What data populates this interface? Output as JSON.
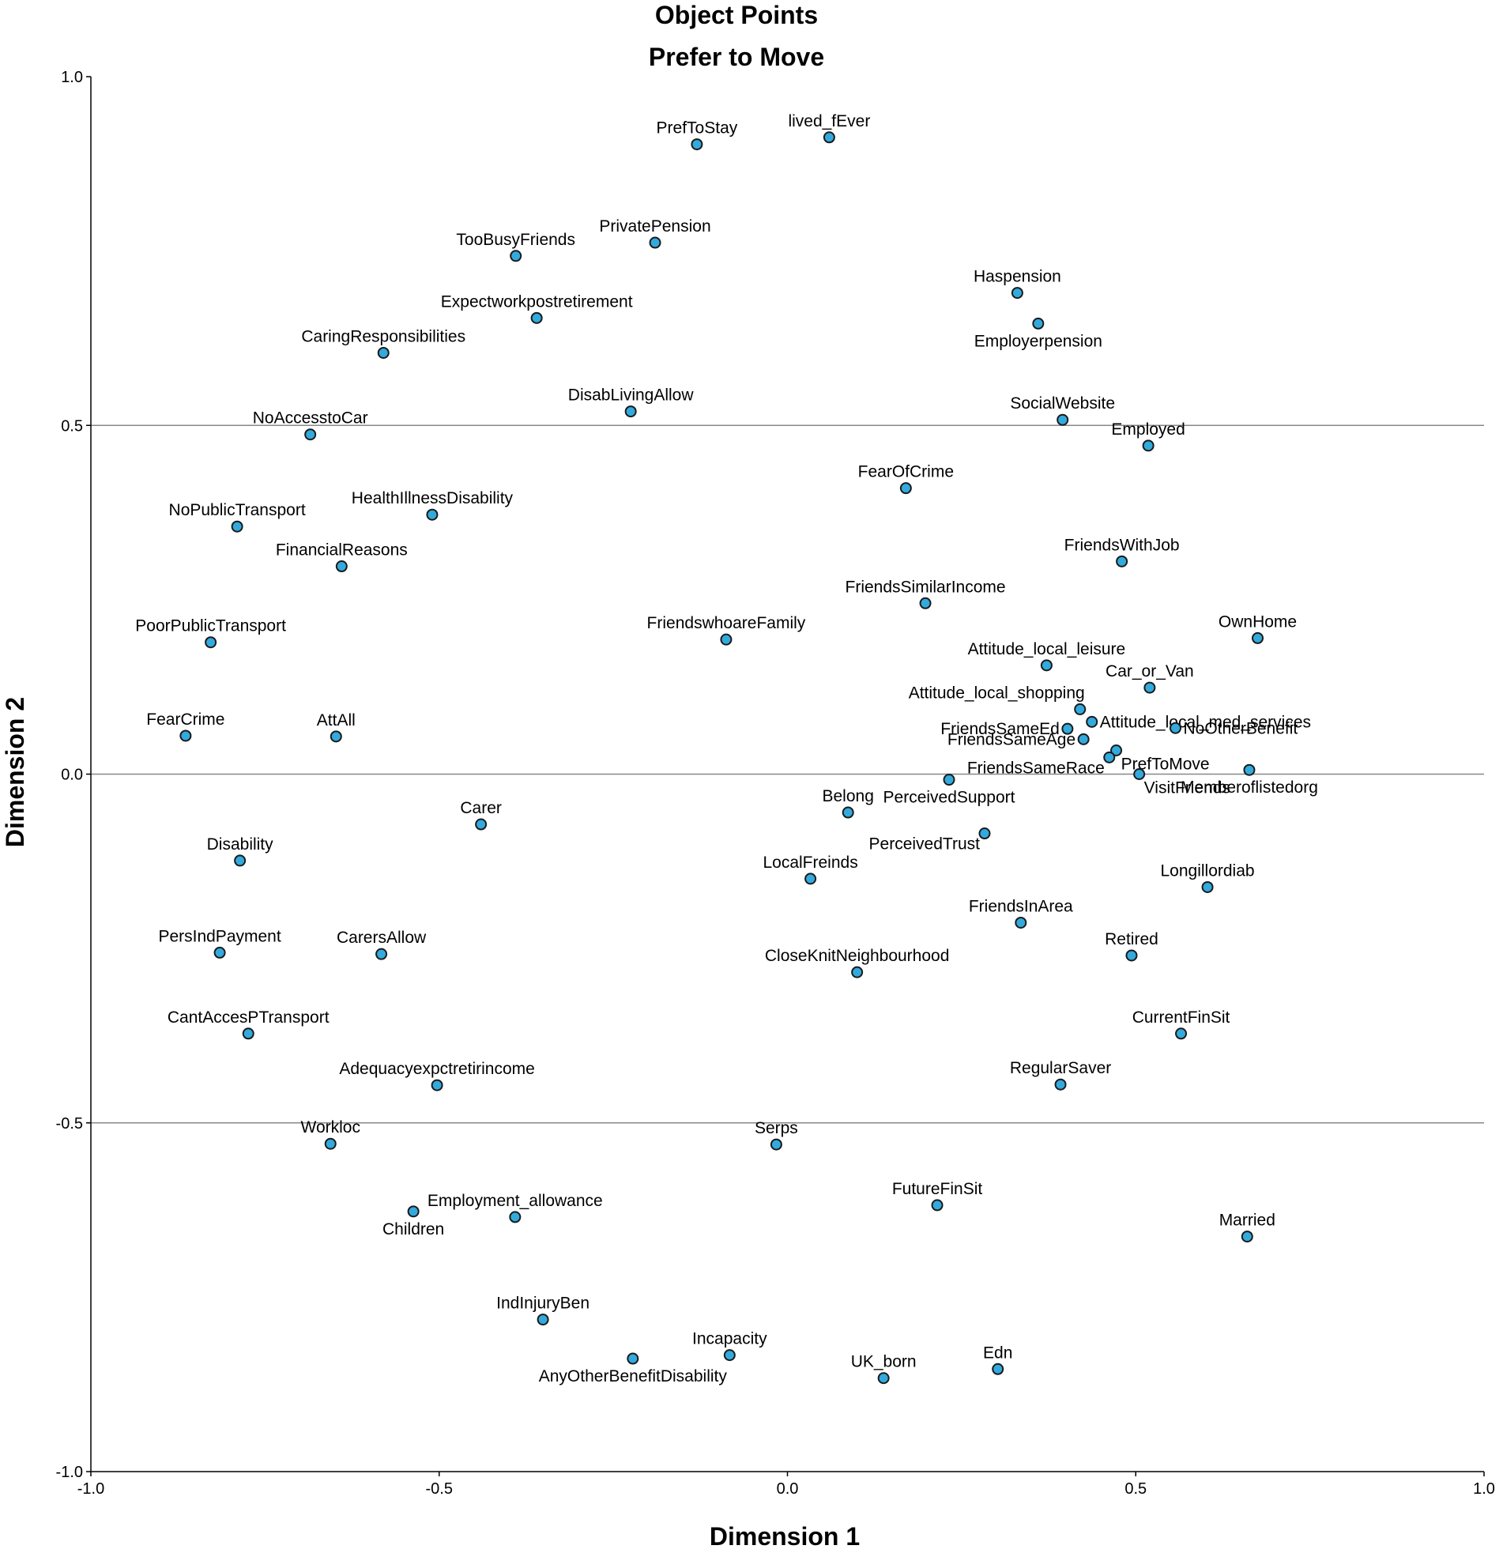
{
  "chart_data": {
    "type": "scatter",
    "title": "Object Points",
    "subtitle": "Prefer to  Move",
    "xlabel": "Dimension 1",
    "ylabel": "Dimension 2",
    "xlim": [
      -1.0,
      1.0
    ],
    "ylim": [
      -1.0,
      1.0
    ],
    "xticks": [
      -1.0,
      -0.5,
      0.0,
      0.5,
      1.0
    ],
    "yticks": [
      1.0,
      0.5,
      0.0,
      -0.5,
      -1.0
    ],
    "xtick_labels": [
      "-1.0",
      "-0.5",
      "0.0",
      "0.5",
      "1.0"
    ],
    "ytick_labels": [
      "1.0",
      "0.5",
      "0.0",
      "-0.5",
      "-1.0"
    ],
    "reference_lines_y": [
      0.5,
      0.0,
      -0.5
    ],
    "point_color": "#33aadd",
    "points": [
      {
        "label": "PrefToStay",
        "x": -0.13,
        "y": 0.903,
        "pos": "above"
      },
      {
        "label": "lived_fEver",
        "x": 0.06,
        "y": 0.913,
        "pos": "above"
      },
      {
        "label": "PrivatePension",
        "x": -0.19,
        "y": 0.762,
        "pos": "above"
      },
      {
        "label": "TooBusyFriends",
        "x": -0.39,
        "y": 0.743,
        "pos": "above"
      },
      {
        "label": "Expectworkpostretirement",
        "x": -0.36,
        "y": 0.654,
        "pos": "above"
      },
      {
        "label": "Haspension",
        "x": 0.33,
        "y": 0.69,
        "pos": "above"
      },
      {
        "label": "Employerpension",
        "x": 0.36,
        "y": 0.646,
        "pos": "below"
      },
      {
        "label": "CaringResponsibilities",
        "x": -0.58,
        "y": 0.604,
        "pos": "above"
      },
      {
        "label": "DisabLivingAllow",
        "x": -0.225,
        "y": 0.52,
        "pos": "above"
      },
      {
        "label": "NoAccesstoCar",
        "x": -0.685,
        "y": 0.487,
        "pos": "above"
      },
      {
        "label": "SocialWebsite",
        "x": 0.395,
        "y": 0.508,
        "pos": "above"
      },
      {
        "label": "Employed",
        "x": 0.518,
        "y": 0.471,
        "pos": "above"
      },
      {
        "label": "FearOfCrime",
        "x": 0.17,
        "y": 0.41,
        "pos": "above"
      },
      {
        "label": "NoPublicTransport",
        "x": -0.79,
        "y": 0.355,
        "pos": "above"
      },
      {
        "label": "HealthIllnessDisability",
        "x": -0.51,
        "y": 0.372,
        "pos": "above"
      },
      {
        "label": "FinancialReasons",
        "x": -0.64,
        "y": 0.298,
        "pos": "above"
      },
      {
        "label": "FriendsWithJob",
        "x": 0.48,
        "y": 0.305,
        "pos": "above"
      },
      {
        "label": "FriendsSimilarIncome",
        "x": 0.198,
        "y": 0.245,
        "pos": "above"
      },
      {
        "label": "PoorPublicTransport",
        "x": -0.828,
        "y": 0.189,
        "pos": "above"
      },
      {
        "label": "FriendswhoareFamily",
        "x": -0.088,
        "y": 0.193,
        "pos": "above"
      },
      {
        "label": "OwnHome",
        "x": 0.675,
        "y": 0.195,
        "pos": "above"
      },
      {
        "label": "Attitude_local_leisure",
        "x": 0.372,
        "y": 0.156,
        "pos": "above"
      },
      {
        "label": "Car_or_Van",
        "x": 0.52,
        "y": 0.124,
        "pos": "above"
      },
      {
        "label": "Attitude_local_shopping",
        "x": 0.42,
        "y": 0.093,
        "pos": "left-above"
      },
      {
        "label": "Attitude_local_med_services",
        "x": 0.437,
        "y": 0.075,
        "pos": "right"
      },
      {
        "label": "FriendsSameEd",
        "x": 0.402,
        "y": 0.065,
        "pos": "left"
      },
      {
        "label": "NoOtherBenefit",
        "x": 0.557,
        "y": 0.066,
        "pos": "right"
      },
      {
        "label": "FearCrime",
        "x": -0.864,
        "y": 0.055,
        "pos": "above"
      },
      {
        "label": "AttAll",
        "x": -0.648,
        "y": 0.054,
        "pos": "above"
      },
      {
        "label": "FriendsSameAge",
        "x": 0.425,
        "y": 0.05,
        "pos": "left"
      },
      {
        "label": "PrefToMove",
        "x": 0.472,
        "y": 0.034,
        "pos": "right-below"
      },
      {
        "label": "FriendsSameRace",
        "x": 0.462,
        "y": 0.024,
        "pos": "left-below"
      },
      {
        "label": "VisitFriends",
        "x": 0.505,
        "y": 0.0,
        "pos": "right-below"
      },
      {
        "label": "Memberoflistedorg",
        "x": 0.663,
        "y": 0.006,
        "pos": "below"
      },
      {
        "label": "PerceivedSupport",
        "x": 0.232,
        "y": -0.008,
        "pos": "below"
      },
      {
        "label": "Belong",
        "x": 0.087,
        "y": -0.055,
        "pos": "above"
      },
      {
        "label": "Carer",
        "x": -0.44,
        "y": -0.072,
        "pos": "above"
      },
      {
        "label": "PerceivedTrust",
        "x": 0.283,
        "y": -0.085,
        "pos": "left-below"
      },
      {
        "label": "Disability",
        "x": -0.786,
        "y": -0.124,
        "pos": "above"
      },
      {
        "label": "LocalFreinds",
        "x": 0.033,
        "y": -0.15,
        "pos": "above"
      },
      {
        "label": "Longillordiab",
        "x": 0.603,
        "y": -0.162,
        "pos": "above"
      },
      {
        "label": "FriendsInArea",
        "x": 0.335,
        "y": -0.213,
        "pos": "above"
      },
      {
        "label": "PersIndPayment",
        "x": -0.815,
        "y": -0.256,
        "pos": "above"
      },
      {
        "label": "CarersAllow",
        "x": -0.583,
        "y": -0.258,
        "pos": "above"
      },
      {
        "label": "Retired",
        "x": 0.494,
        "y": -0.26,
        "pos": "above"
      },
      {
        "label": "CloseKnitNeighbourhood",
        "x": 0.1,
        "y": -0.284,
        "pos": "above"
      },
      {
        "label": "CantAccesPTransport",
        "x": -0.774,
        "y": -0.372,
        "pos": "above"
      },
      {
        "label": "CurrentFinSit",
        "x": 0.565,
        "y": -0.372,
        "pos": "above"
      },
      {
        "label": "Adequacyexpctretirincome",
        "x": -0.503,
        "y": -0.446,
        "pos": "above"
      },
      {
        "label": "RegularSaver",
        "x": 0.392,
        "y": -0.445,
        "pos": "above"
      },
      {
        "label": "Workloc",
        "x": -0.656,
        "y": -0.53,
        "pos": "above"
      },
      {
        "label": "Serps",
        "x": -0.016,
        "y": -0.531,
        "pos": "above"
      },
      {
        "label": "FutureFinSit",
        "x": 0.215,
        "y": -0.618,
        "pos": "above"
      },
      {
        "label": "Children",
        "x": -0.537,
        "y": -0.627,
        "pos": "below"
      },
      {
        "label": "Employment_allowance",
        "x": -0.391,
        "y": -0.635,
        "pos": "above"
      },
      {
        "label": "Married",
        "x": 0.66,
        "y": -0.663,
        "pos": "above"
      },
      {
        "label": "IndInjuryBen",
        "x": -0.351,
        "y": -0.782,
        "pos": "above"
      },
      {
        "label": "Incapacity",
        "x": -0.083,
        "y": -0.833,
        "pos": "above"
      },
      {
        "label": "AnyOtherBenefitDisability",
        "x": -0.222,
        "y": -0.838,
        "pos": "below"
      },
      {
        "label": "Edn",
        "x": 0.302,
        "y": -0.853,
        "pos": "above"
      },
      {
        "label": "UK_born",
        "x": 0.138,
        "y": -0.866,
        "pos": "above"
      }
    ]
  }
}
